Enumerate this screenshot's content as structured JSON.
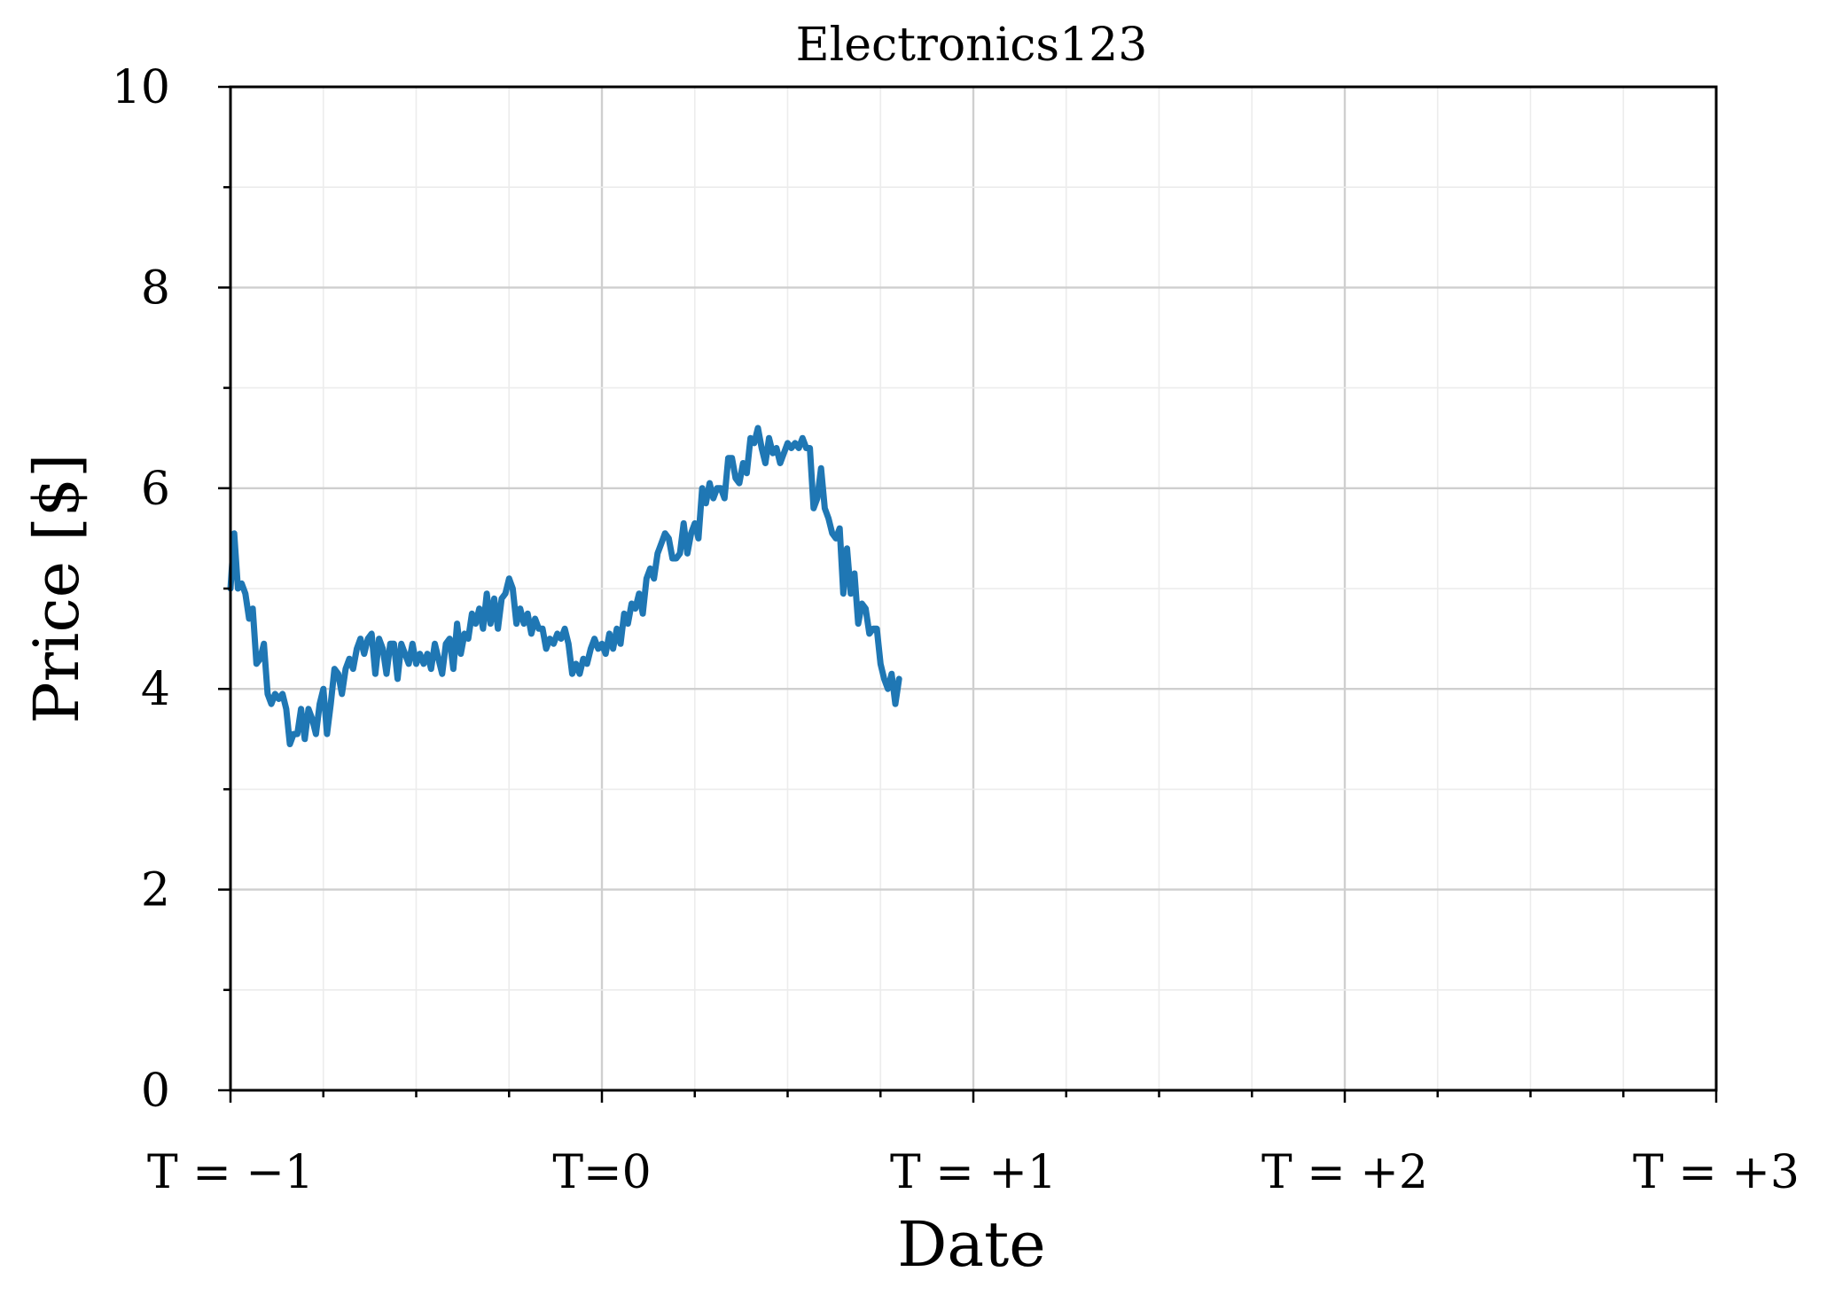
{
  "chart_data": {
    "type": "line",
    "title": "Electronics123",
    "xlabel": "Date",
    "ylabel": "Price [$]",
    "xlim": [
      -1,
      3
    ],
    "ylim": [
      0,
      10
    ],
    "grid": true,
    "x_ticks": [
      {
        "value": -1,
        "label": "T = −1"
      },
      {
        "value": 0,
        "label": "T=0"
      },
      {
        "value": 1,
        "label": "T = +1"
      },
      {
        "value": 2,
        "label": "T = +2"
      },
      {
        "value": 3,
        "label": "T = +3"
      }
    ],
    "y_ticks": [
      {
        "value": 0,
        "label": "0"
      },
      {
        "value": 2,
        "label": "2"
      },
      {
        "value": 4,
        "label": "4"
      },
      {
        "value": 6,
        "label": "6"
      },
      {
        "value": 8,
        "label": "8"
      },
      {
        "value": 10,
        "label": "10"
      }
    ],
    "series": [
      {
        "color": "#1f77b4",
        "points": [
          [
            -1.0,
            5.0
          ],
          [
            -0.99,
            5.55
          ],
          [
            -0.98,
            5.0
          ],
          [
            -0.97,
            5.05
          ],
          [
            -0.96,
            4.95
          ],
          [
            -0.95,
            4.7
          ],
          [
            -0.94,
            4.8
          ],
          [
            -0.93,
            4.25
          ],
          [
            -0.92,
            4.3
          ],
          [
            -0.91,
            4.45
          ],
          [
            -0.9,
            3.95
          ],
          [
            -0.89,
            3.85
          ],
          [
            -0.88,
            3.95
          ],
          [
            -0.87,
            3.9
          ],
          [
            -0.86,
            3.95
          ],
          [
            -0.85,
            3.8
          ],
          [
            -0.84,
            3.45
          ],
          [
            -0.83,
            3.55
          ],
          [
            -0.82,
            3.55
          ],
          [
            -0.81,
            3.8
          ],
          [
            -0.8,
            3.5
          ],
          [
            -0.79,
            3.8
          ],
          [
            -0.78,
            3.7
          ],
          [
            -0.77,
            3.55
          ],
          [
            -0.76,
            3.85
          ],
          [
            -0.75,
            4.0
          ],
          [
            -0.74,
            3.55
          ],
          [
            -0.73,
            3.85
          ],
          [
            -0.72,
            4.2
          ],
          [
            -0.71,
            4.15
          ],
          [
            -0.7,
            3.95
          ],
          [
            -0.69,
            4.2
          ],
          [
            -0.68,
            4.3
          ],
          [
            -0.67,
            4.2
          ],
          [
            -0.66,
            4.4
          ],
          [
            -0.65,
            4.5
          ],
          [
            -0.64,
            4.35
          ],
          [
            -0.63,
            4.5
          ],
          [
            -0.62,
            4.55
          ],
          [
            -0.61,
            4.15
          ],
          [
            -0.6,
            4.5
          ],
          [
            -0.59,
            4.4
          ],
          [
            -0.58,
            4.15
          ],
          [
            -0.57,
            4.45
          ],
          [
            -0.56,
            4.45
          ],
          [
            -0.55,
            4.1
          ],
          [
            -0.54,
            4.45
          ],
          [
            -0.53,
            4.35
          ],
          [
            -0.52,
            4.25
          ],
          [
            -0.51,
            4.45
          ],
          [
            -0.5,
            4.25
          ],
          [
            -0.49,
            4.35
          ],
          [
            -0.48,
            4.25
          ],
          [
            -0.47,
            4.35
          ],
          [
            -0.46,
            4.2
          ],
          [
            -0.45,
            4.45
          ],
          [
            -0.44,
            4.3
          ],
          [
            -0.43,
            4.15
          ],
          [
            -0.42,
            4.45
          ],
          [
            -0.41,
            4.5
          ],
          [
            -0.4,
            4.2
          ],
          [
            -0.39,
            4.65
          ],
          [
            -0.38,
            4.35
          ],
          [
            -0.37,
            4.55
          ],
          [
            -0.36,
            4.5
          ],
          [
            -0.35,
            4.75
          ],
          [
            -0.34,
            4.65
          ],
          [
            -0.33,
            4.8
          ],
          [
            -0.32,
            4.6
          ],
          [
            -0.31,
            4.95
          ],
          [
            -0.3,
            4.65
          ],
          [
            -0.29,
            4.9
          ],
          [
            -0.28,
            4.6
          ],
          [
            -0.27,
            4.9
          ],
          [
            -0.26,
            4.95
          ],
          [
            -0.25,
            5.1
          ],
          [
            -0.24,
            5.0
          ],
          [
            -0.23,
            4.65
          ],
          [
            -0.22,
            4.8
          ],
          [
            -0.21,
            4.65
          ],
          [
            -0.2,
            4.75
          ],
          [
            -0.19,
            4.55
          ],
          [
            -0.18,
            4.7
          ],
          [
            -0.17,
            4.6
          ],
          [
            -0.16,
            4.6
          ],
          [
            -0.15,
            4.4
          ],
          [
            -0.14,
            4.5
          ],
          [
            -0.13,
            4.45
          ],
          [
            -0.12,
            4.55
          ],
          [
            -0.11,
            4.5
          ],
          [
            -0.1,
            4.6
          ],
          [
            -0.09,
            4.45
          ],
          [
            -0.08,
            4.15
          ],
          [
            -0.07,
            4.25
          ],
          [
            -0.06,
            4.15
          ],
          [
            -0.05,
            4.3
          ],
          [
            -0.04,
            4.25
          ],
          [
            -0.03,
            4.4
          ],
          [
            -0.02,
            4.5
          ],
          [
            -0.01,
            4.4
          ],
          [
            0.0,
            4.45
          ],
          [
            0.01,
            4.35
          ],
          [
            0.02,
            4.55
          ],
          [
            0.03,
            4.4
          ],
          [
            0.04,
            4.6
          ],
          [
            0.05,
            4.45
          ],
          [
            0.06,
            4.75
          ],
          [
            0.07,
            4.65
          ],
          [
            0.08,
            4.85
          ],
          [
            0.09,
            4.8
          ],
          [
            0.1,
            4.95
          ],
          [
            0.11,
            4.75
          ],
          [
            0.12,
            5.1
          ],
          [
            0.13,
            5.2
          ],
          [
            0.14,
            5.1
          ],
          [
            0.15,
            5.35
          ],
          [
            0.16,
            5.45
          ],
          [
            0.17,
            5.55
          ],
          [
            0.18,
            5.5
          ],
          [
            0.19,
            5.3
          ],
          [
            0.2,
            5.3
          ],
          [
            0.21,
            5.35
          ],
          [
            0.22,
            5.65
          ],
          [
            0.23,
            5.35
          ],
          [
            0.24,
            5.55
          ],
          [
            0.25,
            5.65
          ],
          [
            0.26,
            5.5
          ],
          [
            0.27,
            6.0
          ],
          [
            0.28,
            5.85
          ],
          [
            0.29,
            6.05
          ],
          [
            0.3,
            5.9
          ],
          [
            0.31,
            6.0
          ],
          [
            0.32,
            6.0
          ],
          [
            0.33,
            5.9
          ],
          [
            0.34,
            6.3
          ],
          [
            0.35,
            6.3
          ],
          [
            0.36,
            6.1
          ],
          [
            0.37,
            6.05
          ],
          [
            0.38,
            6.25
          ],
          [
            0.39,
            6.15
          ],
          [
            0.4,
            6.5
          ],
          [
            0.41,
            6.45
          ],
          [
            0.42,
            6.6
          ],
          [
            0.43,
            6.4
          ],
          [
            0.44,
            6.25
          ],
          [
            0.45,
            6.5
          ],
          [
            0.46,
            6.35
          ],
          [
            0.47,
            6.4
          ],
          [
            0.48,
            6.25
          ],
          [
            0.49,
            6.35
          ],
          [
            0.5,
            6.45
          ],
          [
            0.51,
            6.4
          ],
          [
            0.52,
            6.45
          ],
          [
            0.53,
            6.4
          ],
          [
            0.54,
            6.5
          ],
          [
            0.55,
            6.4
          ],
          [
            0.56,
            6.4
          ],
          [
            0.57,
            5.8
          ],
          [
            0.58,
            5.9
          ],
          [
            0.59,
            6.2
          ],
          [
            0.6,
            5.8
          ],
          [
            0.61,
            5.7
          ],
          [
            0.62,
            5.55
          ],
          [
            0.63,
            5.5
          ],
          [
            0.64,
            5.6
          ],
          [
            0.65,
            4.95
          ],
          [
            0.66,
            5.4
          ],
          [
            0.67,
            4.95
          ],
          [
            0.68,
            5.15
          ],
          [
            0.69,
            4.65
          ],
          [
            0.7,
            4.85
          ],
          [
            0.71,
            4.8
          ],
          [
            0.72,
            4.55
          ],
          [
            0.73,
            4.6
          ],
          [
            0.74,
            4.6
          ],
          [
            0.75,
            4.25
          ],
          [
            0.76,
            4.1
          ],
          [
            0.77,
            4.0
          ],
          [
            0.78,
            4.15
          ],
          [
            0.79,
            3.85
          ],
          [
            0.8,
            4.1
          ]
        ]
      }
    ]
  }
}
